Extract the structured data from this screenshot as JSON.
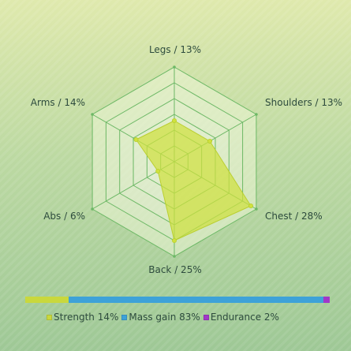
{
  "chart_data": {
    "type": "radar",
    "categories": [
      "Legs",
      "Shoulders",
      "Chest",
      "Back",
      "Abs",
      "Arms"
    ],
    "values": [
      13,
      13,
      28,
      25,
      6,
      14
    ],
    "labels": [
      "Legs / 13%",
      "Shoulders / 13%",
      "Chest / 28%",
      "Back / 25%",
      "Abs / 6%",
      "Arms / 14%"
    ],
    "range": [
      0,
      30
    ],
    "grid": true,
    "series_color": "#cfe13e",
    "grid_color": "#6cb865",
    "summary": [
      {
        "name": "Strength",
        "value": 14,
        "label": "Strength 14%",
        "color": "#c9d83d"
      },
      {
        "name": "Mass gain",
        "value": 83,
        "label": "Mass gain 83%",
        "color": "#3ea2d8"
      },
      {
        "name": "Endurance",
        "value": 2,
        "label": "Endurance 2%",
        "color": "#a237c9"
      }
    ]
  }
}
